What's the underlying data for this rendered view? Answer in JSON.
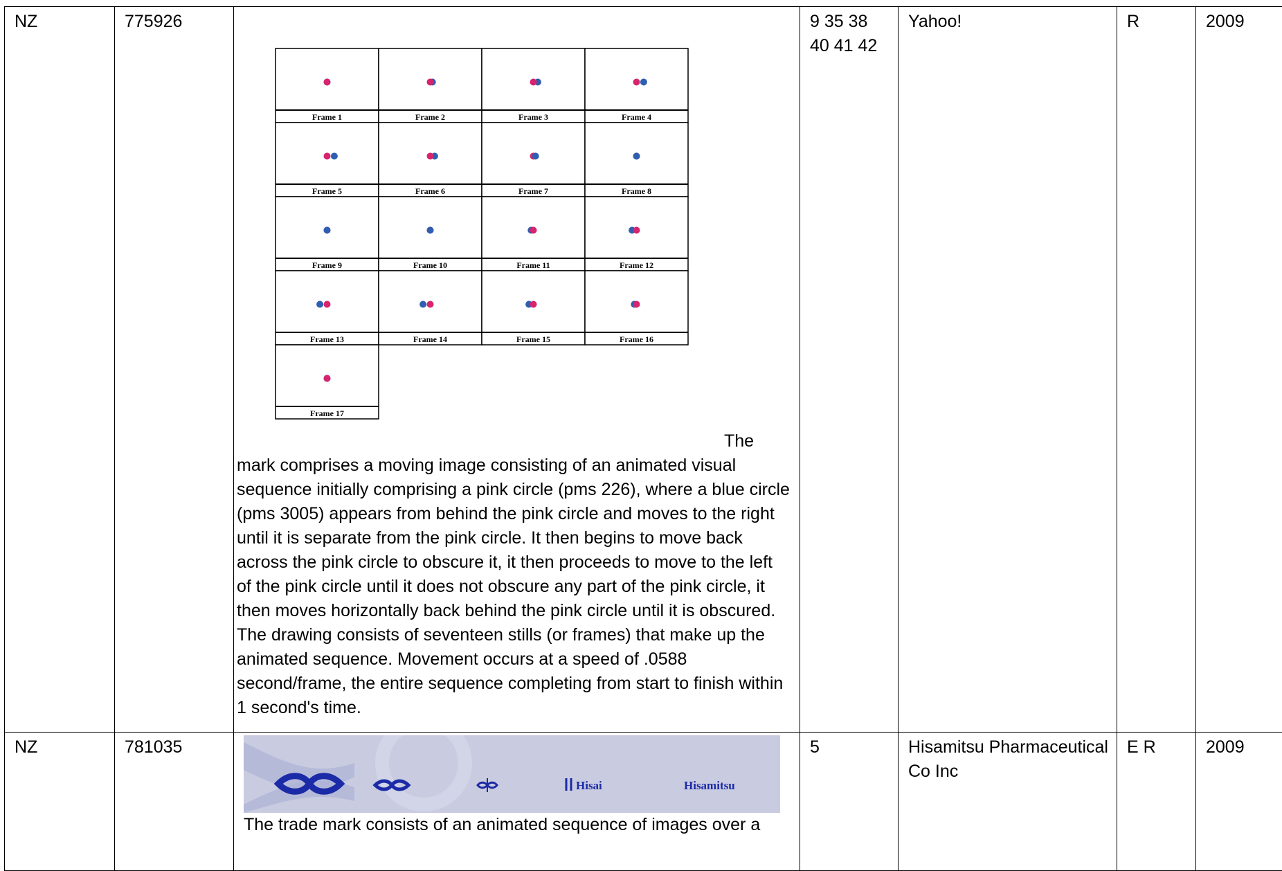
{
  "table": {
    "rows": [
      {
        "country": "NZ",
        "number": "775926",
        "image": {
          "frames": [
            "Frame 1",
            "Frame 2",
            "Frame 3",
            "Frame 4",
            "Frame 5",
            "Frame 6",
            "Frame 7",
            "Frame 8",
            "Frame 9",
            "Frame 10",
            "Frame 11",
            "Frame 12",
            "Frame 13",
            "Frame 14",
            "Frame 15",
            "Frame 16",
            "Frame 17"
          ]
        },
        "description": "The mark comprises a moving image consisting of an animated visual sequence initially comprising a pink circle (pms 226), where a blue circle (pms 3005) appears from behind the pink circle and moves to the right until it is separate from the pink circle. It then begins to move back across the pink circle to obscure it, it then proceeds to move to the left of the pink circle until it does not obscure any part of the pink circle, it then moves horizontally back behind the pink circle until it is obscured. The drawing consists of seventeen stills (or frames) that make up the animated sequence. Movement occurs at a speed of .0588 second/frame, the entire sequence completing from start to finish within 1 second's time.",
        "classes": "9 35 38 40 41 42",
        "owner": "Yahoo!",
        "status": "R",
        "year": "2009"
      },
      {
        "country": "NZ",
        "number": "781035",
        "image": {
          "logo_texts": [
            "Hisai",
            "Hisamitsu"
          ]
        },
        "description": "The trade mark consists of an animated sequence of images over a",
        "classes": "5",
        "owner": "Hisamitsu Pharmaceutical Co Inc",
        "status": "E R",
        "year": "2009"
      }
    ]
  }
}
